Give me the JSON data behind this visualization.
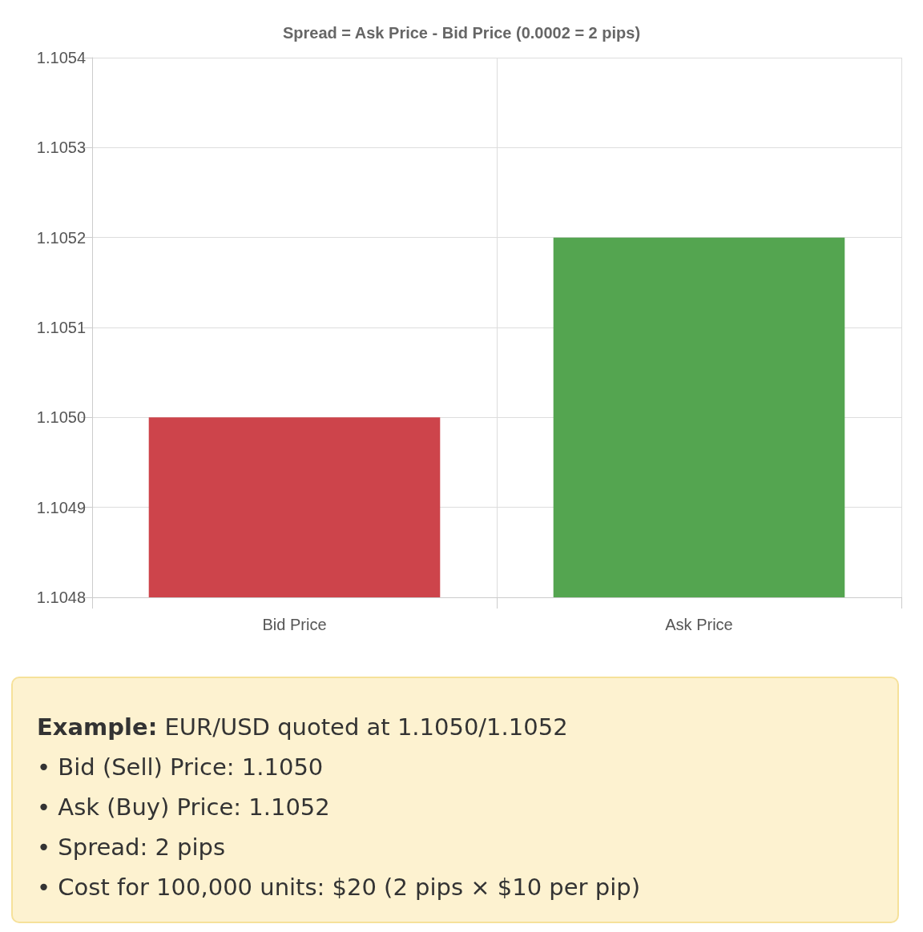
{
  "chart_data": {
    "type": "bar",
    "title": "Spread = Ask Price - Bid Price (0.0002 = 2 pips)",
    "categories": [
      "Bid Price",
      "Ask Price"
    ],
    "values": [
      1.105,
      1.1052
    ],
    "colors": [
      "#cd444b",
      "#54a550"
    ],
    "ylim": [
      1.1048,
      1.1054
    ],
    "yticks": [
      1.1048,
      1.1049,
      {
        "value": 1.105,
        "label": "1.1050"
      },
      1.1051,
      1.1052,
      1.1053,
      1.1054
    ],
    "grid": true,
    "annotations": [
      "Example: EUR/USD quoted at 1.1050/1.1052",
      "• Bid (Sell) Price: 1.1050",
      "• Ask (Buy) Price: 1.1052",
      "• Spread: 2 pips",
      "• Cost for 100,000 units: $20 (2 pips × $10 per pip)"
    ]
  }
}
